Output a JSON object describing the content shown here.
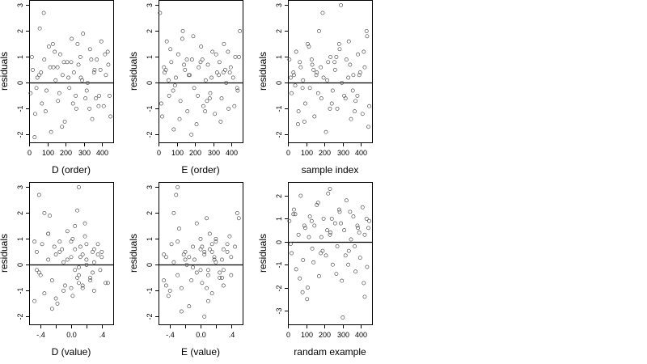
{
  "chart_data": [
    {
      "type": "scatter",
      "xlabel": "D (order)",
      "ylabel": "residuals",
      "xlim": [
        0,
        460
      ],
      "ylim": [
        -2.3,
        3.2
      ],
      "xticks": [
        0,
        100,
        200,
        300,
        400
      ],
      "yticks": [
        -2,
        -1,
        0,
        1,
        2,
        3
      ],
      "reference_line_y": 0,
      "grid": false,
      "point_color": "#555555",
      "x": [
        8,
        20,
        33,
        45,
        58,
        70,
        83,
        95,
        108,
        120,
        133,
        145,
        158,
        170,
        183,
        195,
        208,
        220,
        233,
        245,
        258,
        270,
        283,
        295,
        308,
        320,
        333,
        345,
        358,
        370,
        383,
        395,
        408,
        420,
        433,
        445,
        15,
        40,
        65,
        90,
        115,
        140,
        165,
        190,
        215,
        240,
        265,
        290,
        315,
        340,
        365,
        390,
        415,
        440,
        30,
        80,
        130,
        180,
        230,
        280,
        330,
        380,
        430,
        55,
        155,
        255,
        355
      ],
      "y": [
        -0.4,
        0.5,
        -1.2,
        0.2,
        2.1,
        -0.8,
        0.9,
        -0.3,
        1.4,
        -1.9,
        0.6,
        0.1,
        -0.7,
        1.1,
        0.3,
        -1.5,
        0.8,
        -0.2,
        1.7,
        0.4,
        -1.0,
        0.7,
        0.2,
        1.9,
        -0.6,
        0.0,
        1.3,
        -1.4,
        0.5,
        0.9,
        -0.5,
        1.6,
        -0.9,
        0.3,
        0.7,
        -1.3,
        1.0,
        -0.2,
        0.4,
        -1.1,
        0.6,
        1.2,
        -0.4,
        0.8,
        0.2,
        -0.8,
        1.5,
        0.1,
        -0.3,
        0.9,
        -0.6,
        0.5,
        1.1,
        -0.5,
        -2.1,
        2.7,
        1.5,
        -1.7,
        0.8,
        1.0,
        -1.0,
        -0.9,
        1.2,
        0.3,
        0.6,
        -0.5,
        0.4
      ]
    },
    {
      "type": "scatter",
      "xlabel": "E (order)",
      "ylabel": "residuals",
      "xlim": [
        0,
        460
      ],
      "ylim": [
        -2.3,
        3.2
      ],
      "xticks": [
        0,
        100,
        200,
        300,
        400
      ],
      "yticks": [
        -2,
        -1,
        0,
        1,
        2,
        3
      ],
      "reference_line_y": 0,
      "grid": false,
      "point_color": "#555555",
      "x": [
        8,
        20,
        33,
        45,
        58,
        70,
        83,
        95,
        108,
        120,
        133,
        145,
        158,
        170,
        183,
        195,
        208,
        220,
        233,
        245,
        258,
        270,
        283,
        295,
        308,
        320,
        333,
        345,
        358,
        370,
        383,
        395,
        408,
        420,
        433,
        445,
        15,
        40,
        65,
        90,
        115,
        140,
        165,
        190,
        215,
        240,
        265,
        290,
        315,
        340,
        365,
        390,
        415,
        440,
        30,
        80,
        130,
        180,
        230,
        280,
        330,
        380,
        430,
        55,
        155,
        255,
        355
      ],
      "y": [
        2.7,
        -1.3,
        0.4,
        1.6,
        -0.5,
        0.8,
        -1.8,
        0.2,
        1.1,
        -0.7,
        2.0,
        0.5,
        -1.1,
        0.3,
        0.9,
        -0.2,
        -1.6,
        0.6,
        1.4,
        -0.9,
        0.1,
        0.7,
        -0.4,
        1.2,
        -1.2,
        0.4,
        0.8,
        -0.6,
        1.5,
        0.0,
        -1.0,
        0.6,
        0.2,
        1.0,
        -0.3,
        2.0,
        -0.8,
        0.5,
        1.3,
        -0.1,
        -1.4,
        0.7,
        0.3,
        1.8,
        -0.5,
        0.9,
        -0.7,
        0.2,
        1.1,
        -1.5,
        0.5,
        0.4,
        -0.9,
        1.0,
        0.6,
        -0.3,
        1.7,
        -2.0,
        0.8,
        -0.6,
        0.3,
        1.2,
        -0.2,
        0.1,
        0.9,
        -1.1,
        0.4
      ]
    },
    {
      "type": "scatter",
      "xlabel": "sample index",
      "ylabel": "residuals",
      "xlim": [
        0,
        460
      ],
      "ylim": [
        -2.3,
        3.2
      ],
      "xticks": [
        0,
        100,
        200,
        300,
        400
      ],
      "yticks": [
        -2,
        -1,
        0,
        1,
        2,
        3
      ],
      "reference_line_y": 0,
      "grid": false,
      "point_color": "#555555",
      "x": [
        8,
        20,
        33,
        45,
        58,
        70,
        83,
        95,
        108,
        120,
        133,
        145,
        158,
        170,
        183,
        195,
        208,
        220,
        233,
        245,
        258,
        270,
        283,
        295,
        308,
        320,
        333,
        345,
        358,
        370,
        383,
        395,
        408,
        420,
        433,
        445,
        15,
        40,
        65,
        90,
        115,
        140,
        165,
        190,
        215,
        240,
        265,
        290,
        315,
        340,
        365,
        390,
        415,
        440,
        30,
        80,
        130,
        180,
        230,
        280,
        330,
        380,
        430,
        55,
        155,
        255,
        355
      ],
      "y": [
        0.9,
        -0.4,
        0.3,
        1.2,
        -1.1,
        0.6,
        0.1,
        -0.8,
        1.5,
        -0.2,
        0.7,
        -1.3,
        0.4,
        2.0,
        -0.6,
        0.2,
        -1.9,
        0.8,
        1.0,
        -0.3,
        0.5,
        -1.0,
        1.3,
        0.0,
        -0.5,
        0.9,
        1.6,
        -1.4,
        0.3,
        -0.7,
        1.1,
        0.4,
        -1.2,
        0.6,
        1.8,
        -0.9,
        0.2,
        -0.1,
        0.8,
        -1.5,
        1.4,
        0.5,
        -0.4,
        2.7,
        0.1,
        -0.8,
        1.0,
        3.0,
        -0.6,
        0.7,
        -1.1,
        0.3,
        1.2,
        -1.7,
        0.4,
        -0.2,
        0.9,
        0.6,
        -1.0,
        1.5,
        0.2,
        -0.5,
        2.0,
        -1.6,
        0.3,
        0.8,
        -0.3
      ]
    },
    {
      "type": "scatter",
      "xlabel": "D (value)",
      "ylabel": "residuals",
      "xlim": [
        -0.55,
        0.55
      ],
      "ylim": [
        -2.3,
        3.2
      ],
      "xticks": [
        -0.4,
        0.0,
        0.4
      ],
      "xticks_unlabeled": [
        -0.2,
        0.2
      ],
      "yticks": [
        -2,
        -1,
        0,
        1,
        2,
        3
      ],
      "reference_line_y": 0,
      "grid": false,
      "point_color": "#555555",
      "x": [
        -0.48,
        -0.45,
        -0.42,
        -0.38,
        -0.35,
        -0.3,
        -0.28,
        -0.25,
        -0.2,
        -0.18,
        -0.15,
        -0.1,
        -0.08,
        -0.05,
        0.0,
        0.02,
        0.05,
        0.08,
        0.1,
        0.12,
        0.15,
        0.18,
        0.2,
        0.25,
        0.28,
        0.3,
        0.35,
        0.38,
        0.4,
        0.45,
        -0.48,
        -0.4,
        -0.3,
        -0.2,
        -0.12,
        -0.05,
        0.0,
        0.05,
        0.1,
        0.15,
        0.2,
        0.25,
        0.3,
        0.4,
        -0.45,
        -0.35,
        -0.22,
        -0.1,
        0.02,
        0.08,
        0.12,
        0.18,
        0.28,
        0.35,
        -0.25,
        -0.15,
        0.0,
        0.1,
        0.2,
        0.3,
        -0.3,
        0.05,
        0.15,
        0.48,
        -0.42,
        0.1
      ],
      "y": [
        -1.4,
        0.5,
        -0.3,
        0.8,
        -1.1,
        0.2,
        1.9,
        -0.6,
        0.4,
        -1.5,
        0.9,
        0.1,
        -0.8,
        1.3,
        0.3,
        -1.2,
        0.6,
        2.1,
        -0.4,
        0.7,
        -0.9,
        1.1,
        0.0,
        -0.5,
        0.5,
        -1.0,
        0.8,
        -0.2,
        0.3,
        -0.7,
        0.9,
        -0.4,
        1.2,
        -1.3,
        0.6,
        0.2,
        -0.9,
        1.5,
        -0.1,
        0.4,
        0.8,
        -0.6,
        0.1,
        0.5,
        -0.2,
        2.0,
        0.7,
        -1.0,
        1.0,
        -0.5,
        0.3,
        1.6,
        -0.3,
        0.4,
        -1.7,
        0.5,
        0.9,
        -0.7,
        0.2,
        0.6,
        1.2,
        -0.2,
        -0.8,
        -0.7,
        2.7,
        3.0
      ]
    },
    {
      "type": "scatter",
      "xlabel": "E (value)",
      "ylabel": "residuals",
      "xlim": [
        -0.55,
        0.55
      ],
      "ylim": [
        -2.3,
        3.2
      ],
      "xticks": [
        -0.4,
        0.0,
        0.4
      ],
      "xticks_unlabeled": [
        -0.2,
        0.2
      ],
      "yticks": [
        -2,
        -1,
        0,
        1,
        2,
        3
      ],
      "reference_line_y": 0,
      "grid": false,
      "point_color": "#555555",
      "x": [
        -0.48,
        -0.45,
        -0.42,
        -0.38,
        -0.35,
        -0.3,
        -0.28,
        -0.25,
        -0.2,
        -0.18,
        -0.15,
        -0.1,
        -0.08,
        -0.05,
        0.0,
        0.02,
        0.05,
        0.08,
        0.1,
        0.12,
        0.15,
        0.18,
        0.2,
        0.25,
        0.28,
        0.3,
        0.35,
        0.38,
        0.4,
        0.45,
        -0.48,
        -0.4,
        -0.3,
        -0.2,
        -0.12,
        -0.05,
        0.0,
        0.05,
        0.1,
        0.15,
        0.2,
        0.25,
        0.3,
        0.4,
        -0.45,
        -0.35,
        -0.22,
        -0.1,
        0.02,
        0.08,
        0.12,
        0.18,
        0.28,
        0.35,
        -0.25,
        -0.15,
        0.0,
        0.1,
        0.2,
        0.3,
        -0.3,
        0.05,
        0.15,
        0.48,
        0.5,
        -0.32
      ],
      "y": [
        -0.6,
        0.3,
        -1.2,
        0.8,
        0.1,
        -0.4,
        1.4,
        -0.9,
        0.5,
        0.0,
        -1.6,
        0.7,
        0.2,
        -0.3,
        1.0,
        -0.7,
        0.4,
        1.8,
        -0.2,
        0.6,
        -1.1,
        0.3,
        0.9,
        -0.5,
        0.2,
        -0.8,
        0.5,
        1.1,
        -0.4,
        0.7,
        0.4,
        -1.0,
        0.9,
        0.2,
        -0.6,
        1.6,
        -0.2,
        0.5,
        -1.4,
        0.8,
        0.1,
        -0.3,
        0.6,
        0.3,
        -0.8,
        2.0,
        0.4,
        -0.1,
        0.7,
        -0.9,
        1.2,
        0.2,
        -0.5,
        0.8,
        -1.8,
        0.3,
        0.6,
        -0.4,
        1.0,
        -0.2,
        3.0,
        -2.0,
        0.5,
        2.0,
        1.8,
        2.7
      ]
    },
    {
      "type": "scatter",
      "xlabel": "randam example",
      "ylabel": "residuals",
      "xlim": [
        0,
        460
      ],
      "ylim": [
        -3.6,
        2.6
      ],
      "xticks": [
        0,
        100,
        200,
        300,
        400
      ],
      "yticks": [
        -3,
        -2,
        -1,
        0,
        1,
        2
      ],
      "reference_line_y": 0,
      "grid": false,
      "point_color": "#555555",
      "x": [
        8,
        20,
        33,
        45,
        58,
        70,
        83,
        95,
        108,
        120,
        133,
        145,
        158,
        170,
        183,
        195,
        208,
        220,
        233,
        245,
        258,
        270,
        283,
        295,
        308,
        320,
        333,
        345,
        358,
        370,
        383,
        395,
        408,
        420,
        433,
        445,
        15,
        40,
        65,
        90,
        115,
        140,
        165,
        190,
        215,
        240,
        265,
        290,
        315,
        340,
        365,
        390,
        415,
        440,
        30,
        80,
        130,
        180,
        230,
        280,
        330,
        380,
        430,
        105,
        300,
        230,
        420
      ],
      "y": [
        0.9,
        -0.5,
        1.4,
        -1.2,
        0.3,
        2.0,
        -0.8,
        0.6,
        -2.0,
        1.1,
        -0.3,
        0.7,
        1.6,
        -1.5,
        0.2,
        1.0,
        -0.6,
        2.1,
        0.4,
        -1.0,
        0.8,
        -0.2,
        1.3,
        -1.7,
        0.5,
        1.8,
        -0.4,
        0.1,
        1.1,
        -1.3,
        0.6,
        -0.7,
        1.5,
        0.3,
        -1.1,
        0.9,
        -0.1,
        1.2,
        -1.6,
        0.7,
        0.2,
        -0.9,
        1.7,
        -0.4,
        0.5,
        1.0,
        -1.4,
        0.8,
        -0.6,
        1.3,
        -0.2,
        0.4,
        -1.8,
        0.6,
        1.2,
        -2.2,
        0.9,
        -0.5,
        0.3,
        1.4,
        -1.0,
        0.7,
        1.0,
        -2.5,
        -3.3,
        2.3,
        -2.4
      ]
    }
  ]
}
